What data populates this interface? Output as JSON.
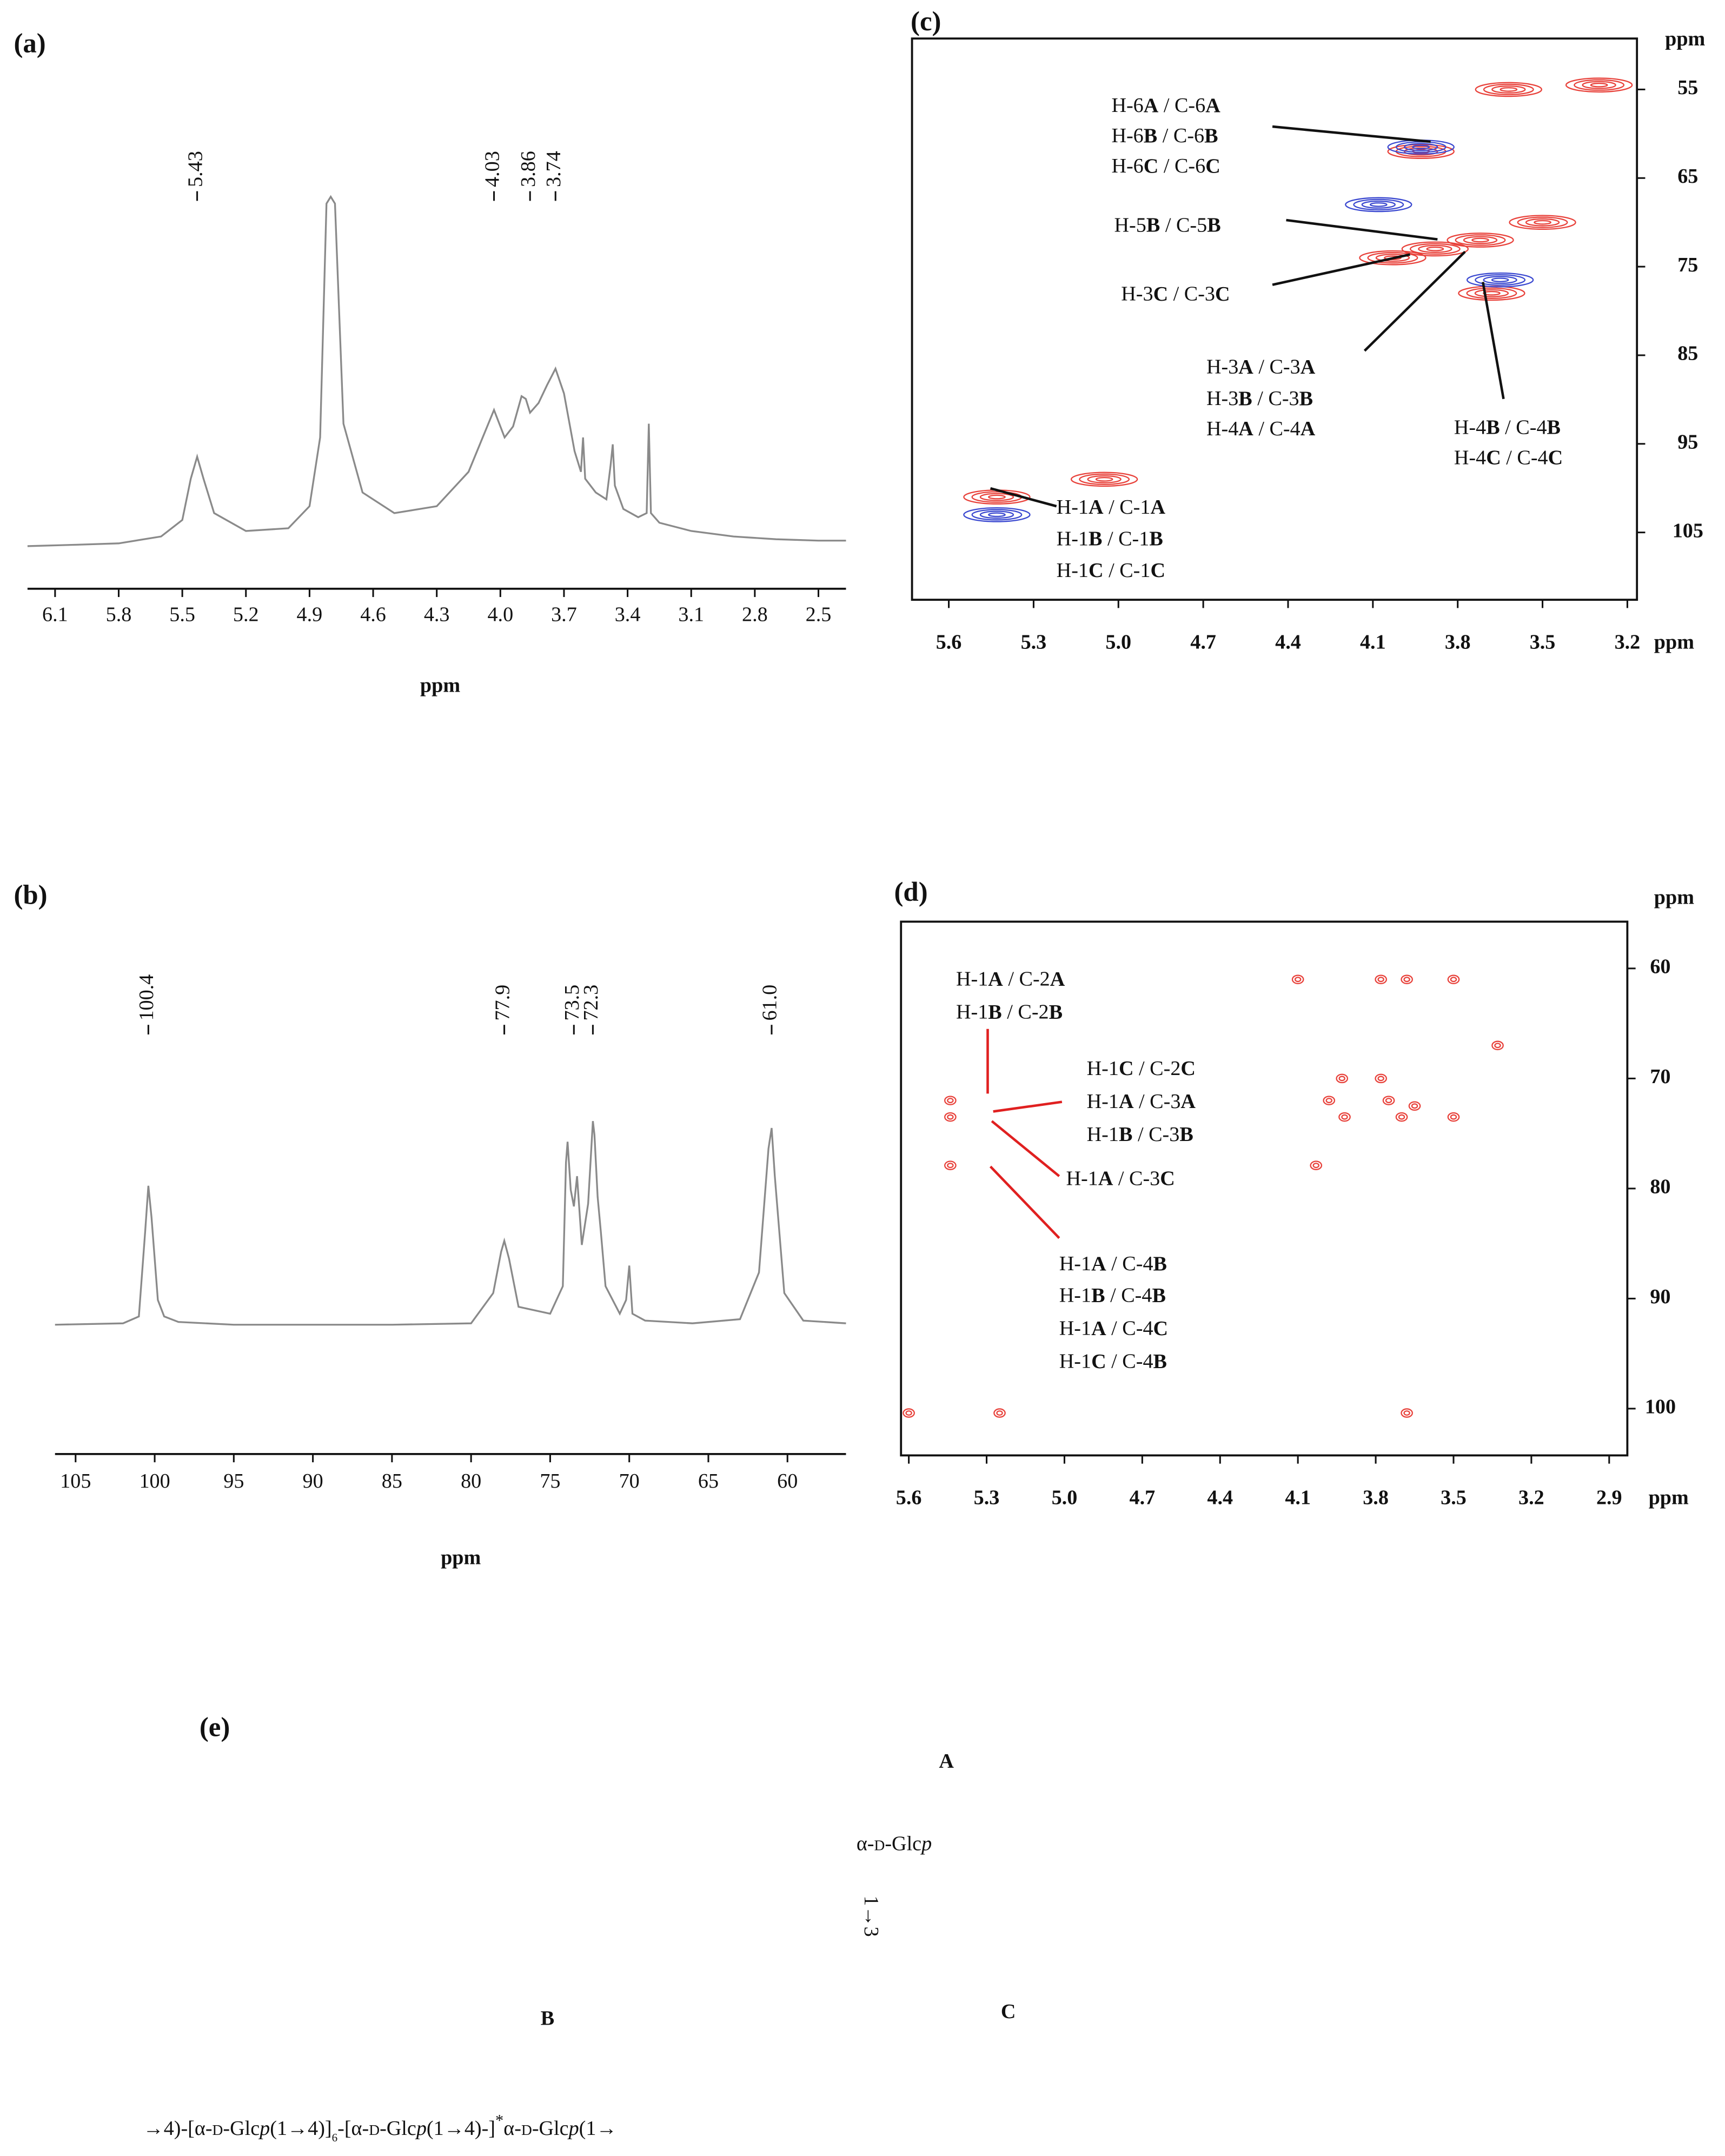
{
  "chart_data": [
    {
      "type": "spectrum",
      "label": "(a)",
      "xlabel": "ppm",
      "color": "#8a8a8a",
      "xlim": [
        6.23,
        2.37
      ],
      "ylim": [
        0,
        260
      ],
      "xticks": [
        6.1,
        5.8,
        5.5,
        5.2,
        4.9,
        4.6,
        4.3,
        {
          "value": 4,
          "label": "4.0"
        },
        3.7,
        3.4,
        3.1,
        2.8,
        2.5
      ],
      "x": [
        6.23,
        6.0,
        5.8,
        5.6,
        5.5,
        5.46,
        5.43,
        5.4,
        5.35,
        5.2,
        5.0,
        4.9,
        4.85,
        4.82,
        4.8,
        4.78,
        4.74,
        4.65,
        4.5,
        4.3,
        4.15,
        4.07,
        4.03,
        3.98,
        3.94,
        3.9,
        3.88,
        3.86,
        3.82,
        3.78,
        3.74,
        3.7,
        3.65,
        3.62,
        3.61,
        3.6,
        3.55,
        3.5,
        3.48,
        3.47,
        3.46,
        3.42,
        3.35,
        3.31,
        3.3,
        3.29,
        3.25,
        3.1,
        2.9,
        2.7,
        2.5,
        2.37
      ],
      "values": [
        1,
        2,
        3,
        8,
        20,
        50,
        66,
        50,
        25,
        12,
        14,
        30,
        80,
        250,
        255,
        250,
        90,
        40,
        25,
        30,
        55,
        85,
        100,
        80,
        88,
        110,
        108,
        98,
        105,
        118,
        130,
        112,
        70,
        55,
        80,
        50,
        40,
        35,
        60,
        75,
        45,
        28,
        22,
        25,
        90,
        25,
        18,
        12,
        8,
        6,
        5,
        5
      ],
      "peak_labels": [
        5.43,
        4.03,
        3.86,
        3.74
      ]
    },
    {
      "type": "spectrum",
      "label": "(b)",
      "xlabel": "ppm",
      "color": "#8a8a8a",
      "xlim": [
        106.3,
        56.3
      ],
      "ylim": [
        0,
        160
      ],
      "xticks": [
        105,
        100,
        95,
        90,
        85,
        80,
        75,
        70,
        65,
        60
      ],
      "x": [
        106.3,
        102,
        101,
        100.6,
        100.4,
        100.2,
        99.8,
        99.4,
        98.5,
        95,
        85,
        80,
        78.6,
        78.1,
        77.9,
        77.6,
        77,
        75,
        74.2,
        74,
        73.9,
        73.7,
        73.5,
        73.3,
        73,
        72.6,
        72.4,
        72.3,
        72.2,
        72,
        71.8,
        71.5,
        70.6,
        70.2,
        70,
        69.8,
        69,
        66,
        63,
        61.8,
        61.2,
        61,
        60.8,
        60.2,
        59,
        56.3
      ],
      "values": [
        2,
        3,
        8,
        70,
        103,
        80,
        20,
        8,
        4,
        2,
        2,
        3,
        25,
        55,
        63,
        50,
        15,
        10,
        30,
        120,
        135,
        100,
        88,
        110,
        60,
        90,
        130,
        150,
        140,
        95,
        70,
        30,
        10,
        20,
        45,
        10,
        5,
        3,
        6,
        40,
        130,
        145,
        110,
        25,
        5,
        3
      ],
      "peak_labels": [
        100.4,
        77.9,
        73.5,
        72.3,
        {
          "value": 61,
          "label": "61.0"
        }
      ]
    },
    {
      "type": "contour",
      "label": "(c)",
      "xlabel": "ppm",
      "ylabel": "ppm",
      "xlim": [
        5.73,
        3.166
      ],
      "ylim": [
        49.25,
        112.6
      ],
      "xticks": [
        5.6,
        5.3,
        {
          "value": 5,
          "label": "5.0"
        },
        4.7,
        4.4,
        4.1,
        3.8,
        3.5,
        3.2
      ],
      "yticks": [
        55,
        65,
        75,
        85,
        95,
        105
      ],
      "series": [
        {
          "color": "#e8413a",
          "x": [
            5.43,
            5.05,
            3.93,
            3.88,
            4.03,
            3.72,
            3.68,
            3.5,
            3.62,
            3.3
          ],
          "values": [
            101,
            99,
            62,
            73,
            74,
            72,
            78,
            70,
            55,
            54.5
          ]
        },
        {
          "color": "#3a48d0",
          "x": [
            3.93,
            5.43,
            3.65,
            4.08
          ],
          "values": [
            61.5,
            103,
            76.5,
            68
          ]
        }
      ],
      "annotations": [
        [
          "H-6A / C-6A",
          "H-6B / C-6B",
          "H-6C / C-6C"
        ],
        [
          "H-5B / C-5B"
        ],
        [
          "H-3C / C-3C"
        ],
        [
          "H-3A / C-3A",
          "H-3B / C-3B",
          "H-4A / C-4A"
        ],
        [
          "H-4B / C-4B",
          "H-4C / C-4C"
        ],
        [
          "H-1A / C-1A",
          "H-1B / C-1B",
          "H-1C / C-1C"
        ]
      ]
    },
    {
      "type": "contour",
      "label": "(d)",
      "xlabel": "ppm",
      "ylabel": "ppm",
      "xlim": [
        5.63,
        2.83
      ],
      "ylim": [
        55.75,
        104.25
      ],
      "xticks": [
        5.6,
        5.3,
        {
          "value": 5,
          "label": "5.0"
        },
        4.7,
        4.4,
        4.1,
        3.8,
        3.5,
        3.2,
        2.9
      ],
      "yticks": [
        60,
        70,
        80,
        90,
        100
      ],
      "series": [
        {
          "color": "#e8413a",
          "x": [
            5.44,
            5.44,
            5.44,
            5.6,
            5.25,
            3.68,
            4.03,
            3.98,
            3.93,
            3.78,
            3.75,
            3.7,
            3.65,
            3.5,
            3.5,
            3.68,
            3.33,
            4.1,
            3.78,
            3.92
          ],
          "values": [
            72,
            73.5,
            77.9,
            100.4,
            100.4,
            100.4,
            77.9,
            72,
            70,
            70,
            72,
            73.5,
            72.5,
            73.5,
            61,
            61,
            67,
            61,
            61,
            73.5
          ]
        }
      ],
      "annotations": [
        [
          "H-1A / C-2A",
          "H-1B / C-2B"
        ],
        [
          "H-1C / C-2C",
          "H-1A / C-3A",
          "H-1B / C-3B"
        ],
        [
          "H-1A / C-3C"
        ],
        [
          "H-1A / C-4B",
          "H-1B / C-4B",
          "H-1A / C-4C",
          "H-1C / C-4B"
        ]
      ]
    }
  ],
  "structure": {
    "label": "(e)",
    "residue_label": "A",
    "residue": [
      "α-",
      "D",
      "-Glc",
      "p"
    ],
    "linkage": "1→3",
    "left_label": "B",
    "right_label": "C",
    "chain": [
      "→4)-[α-",
      "D",
      "-Glc",
      "p",
      "(1→4)]",
      "6",
      "-[α-",
      "D",
      "-Glc",
      "p",
      "(1→4)-]",
      "*",
      "α-",
      "D",
      "-Glc",
      "p",
      "(1→"
    ]
  }
}
